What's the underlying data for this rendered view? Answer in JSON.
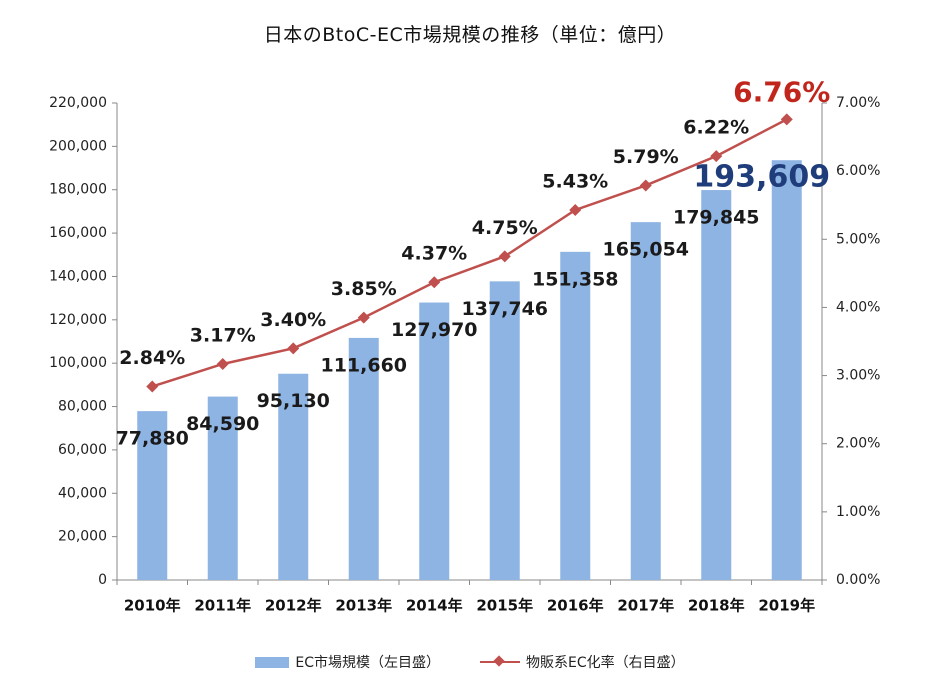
{
  "chart_data": {
    "type": "bar",
    "title": "日本のBtoC-EC市場規模の推移（単位：億円）",
    "categories": [
      "2010年",
      "2011年",
      "2012年",
      "2013年",
      "2014年",
      "2015年",
      "2016年",
      "2017年",
      "2018年",
      "2019年"
    ],
    "series": [
      {
        "name": "EC市場規模（左目盛）",
        "type": "bar",
        "axis": "left",
        "color": "#8eb4e3",
        "values": [
          77880,
          84590,
          95130,
          111660,
          127970,
          137746,
          151358,
          165054,
          179845,
          193609
        ],
        "labels": [
          "77,880",
          "84,590",
          "95,130",
          "111,660",
          "127,970",
          "137,746",
          "151,358",
          "165,054",
          "179,845",
          "193,609"
        ]
      },
      {
        "name": "物販系EC化率（右目盛）",
        "type": "line",
        "axis": "right",
        "color": "#c0504d",
        "marker": "diamond",
        "values": [
          2.84,
          3.17,
          3.4,
          3.85,
          4.37,
          4.75,
          5.43,
          5.79,
          6.22,
          6.76
        ],
        "labels": [
          "2.84%",
          "3.17%",
          "3.40%",
          "3.85%",
          "4.37%",
          "4.75%",
          "5.43%",
          "5.79%",
          "6.22%",
          "6.76%"
        ]
      }
    ],
    "y_left": {
      "range": [
        0,
        220000
      ],
      "ticks": [
        0,
        20000,
        40000,
        60000,
        80000,
        100000,
        120000,
        140000,
        160000,
        180000,
        200000,
        220000
      ],
      "tick_labels": [
        "0",
        "20,000",
        "40,000",
        "60,000",
        "80,000",
        "100,000",
        "120,000",
        "140,000",
        "160,000",
        "180,000",
        "200,000",
        "220,000"
      ]
    },
    "y_right": {
      "range": [
        0,
        7
      ],
      "ticks": [
        0,
        1,
        2,
        3,
        4,
        5,
        6,
        7
      ],
      "tick_labels": [
        "0.00%",
        "1.00%",
        "2.00%",
        "3.00%",
        "4.00%",
        "5.00%",
        "6.00%",
        "7.00%"
      ]
    },
    "grid": false,
    "legend_position": "bottom",
    "highlight_last_point": true
  }
}
